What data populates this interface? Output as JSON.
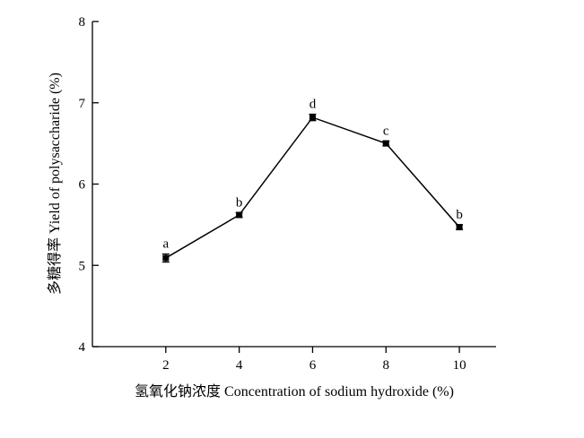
{
  "chart_data": {
    "type": "line",
    "title": "",
    "xlabel": "氢氧化钠浓度 Concentration of sodium hydroxide (%)",
    "ylabel": "多糖得率 Yield of polysaccharide (%)",
    "x": [
      2,
      4,
      6,
      8,
      10
    ],
    "x_ticks": [
      "2",
      "4",
      "6",
      "8",
      "10"
    ],
    "xlim": [
      0,
      11
    ],
    "ylim": [
      4,
      8
    ],
    "y_ticks": [
      "4",
      "5",
      "6",
      "7",
      "8"
    ],
    "grid": false,
    "legend": "none",
    "series": [
      {
        "values": [
          5.09,
          5.62,
          6.82,
          6.5,
          5.47
        ],
        "errors": [
          0.05,
          0.03,
          0.04,
          0.03,
          0.03
        ],
        "labels": [
          "a",
          "b",
          "d",
          "c",
          "b"
        ]
      }
    ]
  }
}
